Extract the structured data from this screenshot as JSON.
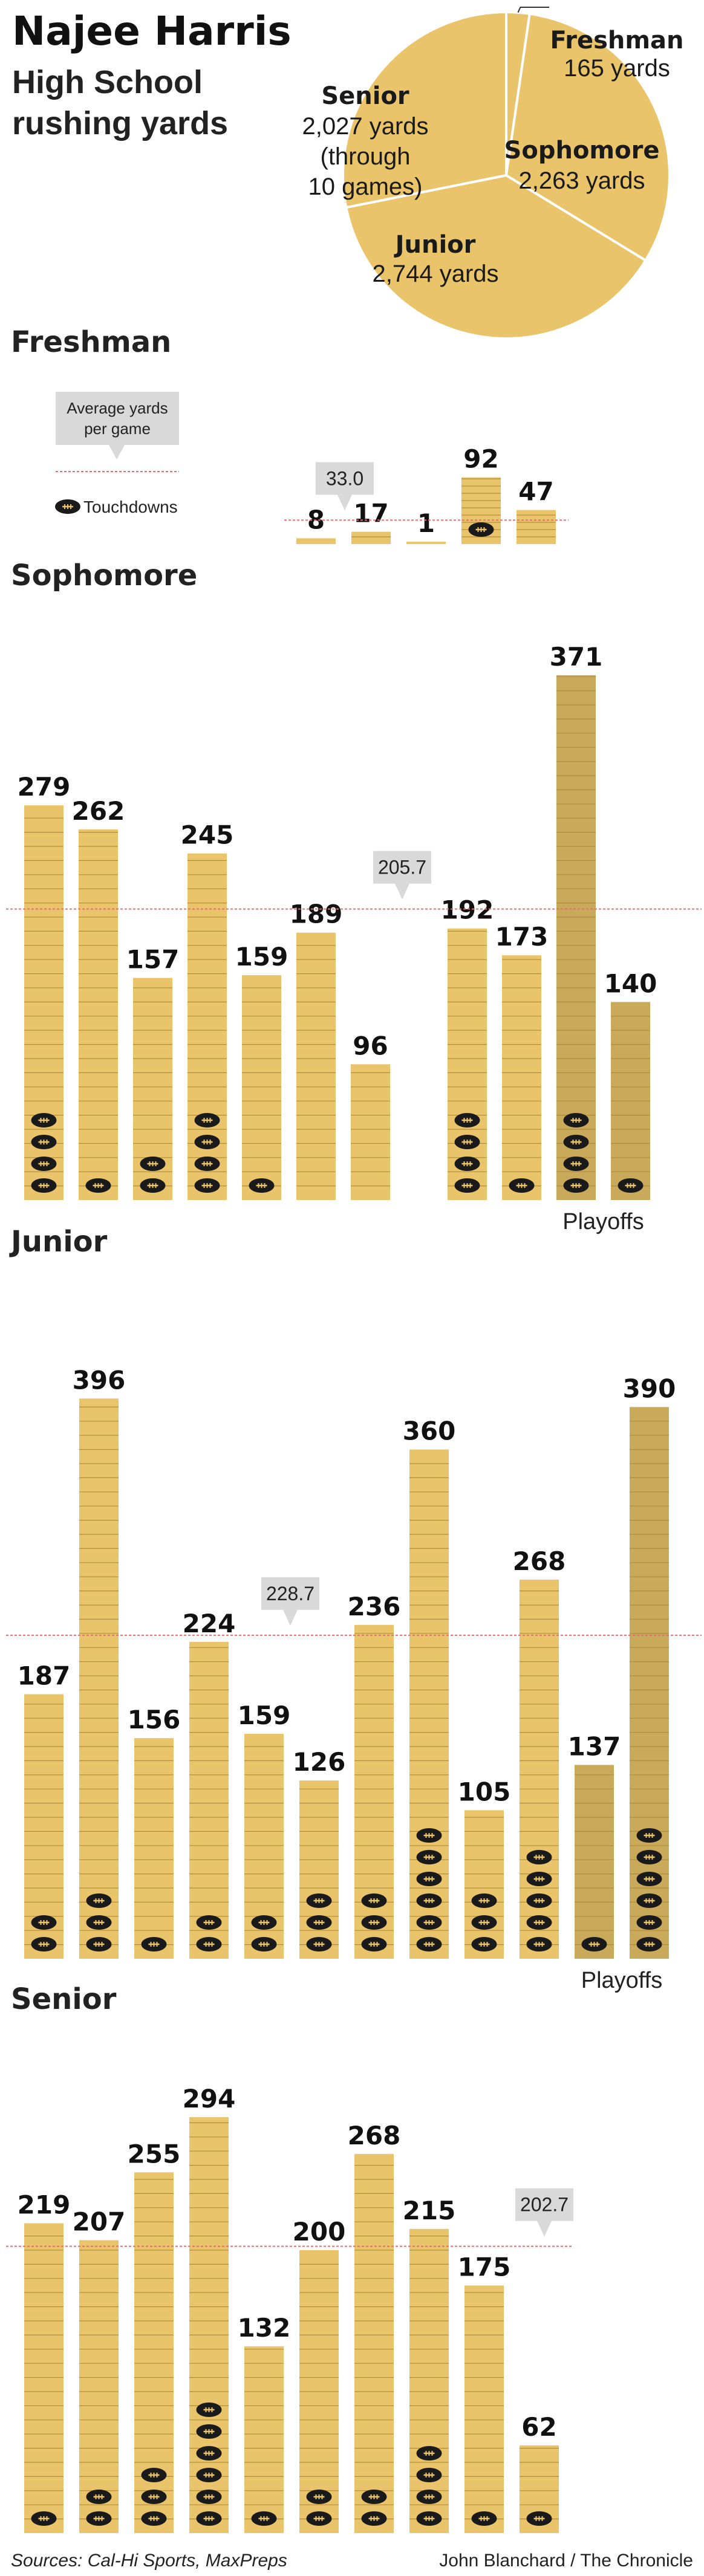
{
  "header": {
    "title": "Najee Harris",
    "subtitle_line1": "High School",
    "subtitle_line2": "rushing yards"
  },
  "colors": {
    "bar": "#e9c46a",
    "bar_playoff": "#c9a95a",
    "bar_line": "#b08d3a",
    "average_line": "#e07070",
    "callout": "#d9d9d9",
    "football": "#1a1a1a"
  },
  "chart_data": [
    {
      "type": "pie",
      "title": "Najee Harris High School rushing yards",
      "slices": [
        {
          "name": "Freshman",
          "value": 165,
          "label": "165 yards"
        },
        {
          "name": "Sophomore",
          "value": 2263,
          "label": "2,263 yards"
        },
        {
          "name": "Junior",
          "value": 2744,
          "label": "2,744 yards"
        },
        {
          "name": "Senior",
          "value": 2027,
          "label": "2,027 yards",
          "note": "(through",
          "note2": "10 games)"
        }
      ]
    },
    {
      "type": "bar",
      "title": "Freshman",
      "values": [
        8,
        17,
        1,
        92,
        47
      ],
      "touchdowns": [
        0,
        0,
        0,
        1,
        0
      ],
      "average": 33.0,
      "average_label": "33.0",
      "legend": {
        "average_line1": "Average yards",
        "average_line2": "per game",
        "touchdowns": "Touchdowns"
      }
    },
    {
      "type": "bar",
      "title": "Sophomore",
      "values": [
        279,
        262,
        157,
        245,
        159,
        189,
        96,
        192,
        173,
        371,
        140
      ],
      "touchdowns": [
        4,
        1,
        2,
        4,
        1,
        0,
        0,
        4,
        1,
        4,
        1
      ],
      "playoff_games": [
        9,
        10
      ],
      "playoffs_label": "Playoffs",
      "average": 205.7,
      "average_label": "205.7"
    },
    {
      "type": "bar",
      "title": "Junior",
      "values": [
        187,
        396,
        156,
        224,
        159,
        126,
        236,
        360,
        105,
        268,
        137,
        390
      ],
      "touchdowns": [
        2,
        3,
        1,
        2,
        2,
        3,
        3,
        6,
        3,
        5,
        1,
        6
      ],
      "playoff_games": [
        10,
        11
      ],
      "playoffs_label": "Playoffs",
      "average": 228.7,
      "average_label": "228.7"
    },
    {
      "type": "bar",
      "title": "Senior",
      "values": [
        219,
        207,
        255,
        294,
        132,
        200,
        268,
        215,
        175,
        62
      ],
      "touchdowns": [
        1,
        2,
        3,
        6,
        1,
        2,
        2,
        4,
        1,
        1
      ],
      "average": 202.7,
      "average_label": "202.7"
    }
  ],
  "footer": {
    "sources": "Sources: Cal-Hi Sports, MaxPreps",
    "credit": "John Blanchard / The Chronicle"
  }
}
